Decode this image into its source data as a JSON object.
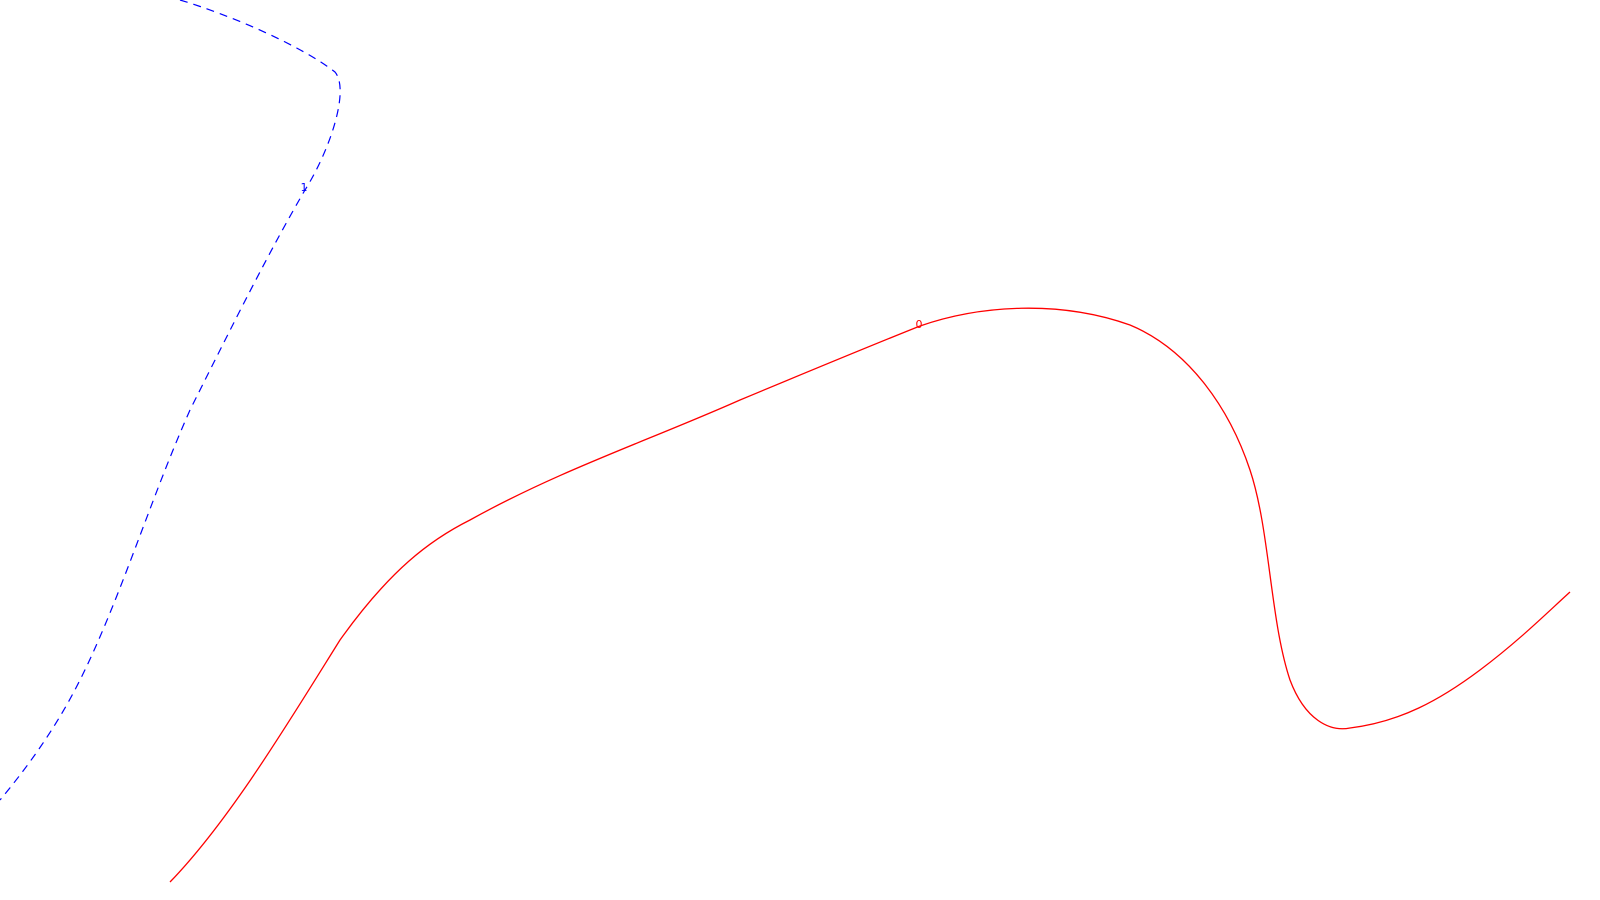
{
  "chart_data": {
    "type": "line",
    "title": "",
    "xlabel": "",
    "ylabel": "",
    "grid": false,
    "legend": "none",
    "series": [
      {
        "level_label": "1",
        "color": "#0000ff",
        "dash": "dashed"
      },
      {
        "level_label": "0",
        "color": "#ff0000",
        "dash": "solid"
      }
    ]
  }
}
